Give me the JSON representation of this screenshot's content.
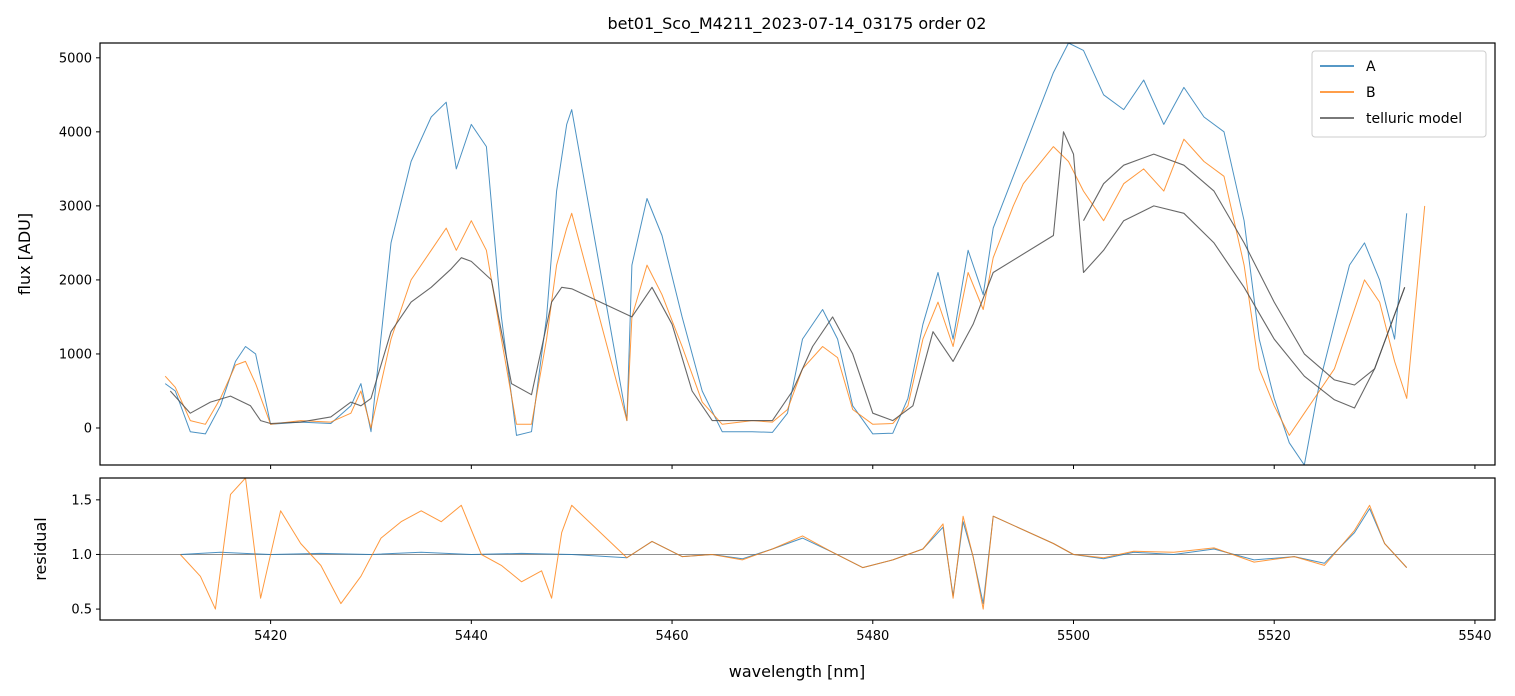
{
  "chart_data": [
    {
      "type": "line",
      "title": "bet01_Sco_M4211_2023-07-14_03175  order 02",
      "xlabel": "",
      "ylabel": "flux [ADU]",
      "xlim": [
        5403,
        5542
      ],
      "ylim": [
        -500,
        5200
      ],
      "yticks": [
        0,
        1000,
        2000,
        3000,
        4000,
        5000
      ],
      "ytick_labels": [
        "0",
        "1000",
        "2000",
        "3000",
        "4000",
        "5000"
      ],
      "xticks": [
        5420,
        5440,
        5460,
        5480,
        5500,
        5520,
        5540
      ],
      "legend": {
        "placement": "top-right",
        "entries": [
          {
            "label": "A",
            "color": "#1f77b4"
          },
          {
            "label": "B",
            "color": "#ff7f0e"
          },
          {
            "label": "telluric model",
            "color": "#4d4d4d"
          }
        ]
      },
      "series": [
        {
          "name": "A",
          "color": "#1f77b4",
          "x": [
            5409.5,
            5410.5,
            5412,
            5413.5,
            5415,
            5416.5,
            5417.5,
            5418.5,
            5420,
            5423,
            5426,
            5428,
            5429,
            5430,
            5432,
            5434,
            5436,
            5437.5,
            5438.5,
            5440,
            5441.5,
            5443,
            5444.5,
            5446,
            5447.5,
            5448.5,
            5449.5,
            5450,
            5455.5,
            5456,
            5457.5,
            5459,
            5461,
            5463,
            5465,
            5468,
            5470,
            5471.5,
            5473,
            5475,
            5476.5,
            5478,
            5480,
            5482,
            5483.5,
            5485,
            5486.5,
            5488,
            5489.5,
            5491,
            5492,
            5498,
            5499.5,
            5501,
            5503,
            5505,
            5507,
            5509,
            5511,
            5513,
            5515,
            5517,
            5518.5,
            5520,
            5521.5,
            5523,
            5524.5,
            5526,
            5527.5,
            5529,
            5530.5,
            5532,
            5533.2
          ],
          "y": [
            600,
            500,
            -50,
            -80,
            300,
            900,
            1100,
            1000,
            50,
            80,
            60,
            300,
            600,
            -50,
            2500,
            3600,
            4200,
            4400,
            3500,
            4100,
            3800,
            1500,
            -100,
            -50,
            1500,
            3200,
            4100,
            4300,
            100,
            2200,
            3100,
            2600,
            1500,
            500,
            -50,
            -50,
            -60,
            200,
            1200,
            1600,
            1200,
            300,
            -80,
            -70,
            400,
            1400,
            2100,
            1200,
            2400,
            1800,
            2700,
            4800,
            5200,
            5100,
            4500,
            4300,
            4700,
            4100,
            4600,
            4200,
            4000,
            2800,
            1200,
            400,
            -200,
            -500,
            600,
            1400,
            2200,
            2500,
            2000,
            1200,
            2900
          ]
        },
        {
          "name": "B",
          "color": "#ff7f0e",
          "x": [
            5409.5,
            5410.5,
            5412,
            5413.5,
            5415,
            5416.5,
            5417.5,
            5418.5,
            5420,
            5423,
            5426,
            5428,
            5429,
            5430,
            5432,
            5434,
            5436,
            5437.5,
            5438.5,
            5440,
            5441.5,
            5443,
            5444.5,
            5446,
            5447.5,
            5448.5,
            5449.5,
            5450,
            5455.5,
            5456,
            5457.5,
            5459,
            5461,
            5463,
            5465,
            5468,
            5470,
            5471.5,
            5473,
            5475,
            5476.5,
            5478,
            5480,
            5482,
            5483.5,
            5485,
            5486.5,
            5488,
            5489.5,
            5491,
            5492,
            5494,
            5495,
            5498,
            5499.5,
            5501,
            5503,
            5505,
            5507,
            5509,
            5511,
            5513,
            5515,
            5517,
            5518.5,
            5520,
            5521.5,
            5523,
            5524.5,
            5526,
            5527.5,
            5529,
            5530.5,
            5532,
            5533.2,
            5535
          ],
          "y": [
            700,
            550,
            100,
            50,
            400,
            850,
            900,
            600,
            50,
            100,
            80,
            200,
            500,
            0,
            1200,
            2000,
            2400,
            2700,
            2400,
            2800,
            2400,
            1200,
            50,
            50,
            1200,
            2200,
            2700,
            2900,
            100,
            1500,
            2200,
            1800,
            1100,
            350,
            50,
            100,
            80,
            250,
            800,
            1100,
            950,
            250,
            50,
            60,
            300,
            1200,
            1700,
            1100,
            2100,
            1600,
            2300,
            3000,
            3300,
            3800,
            3600,
            3200,
            2800,
            3300,
            3500,
            3200,
            3900,
            3600,
            3400,
            2200,
            800,
            300,
            -100,
            200,
            500,
            800,
            1400,
            2000,
            1700,
            900,
            400,
            3000
          ]
        },
        {
          "name": "telluric model",
          "color": "#4d4d4d",
          "x": [
            5410,
            5412,
            5414,
            5416,
            5418,
            5419,
            5420,
            5423,
            5426,
            5428,
            5429,
            5430,
            5432,
            5434,
            5436,
            5438,
            5439,
            5440,
            5442,
            5444,
            5446,
            5448,
            5449,
            5450,
            5456,
            5458,
            5460,
            5462,
            5464,
            5466,
            5470,
            5472,
            5474,
            5476,
            5478,
            5480,
            5482,
            5484,
            5486,
            5488,
            5490,
            5492,
            5498,
            5499,
            5500,
            5501,
            5503,
            5505,
            5508,
            5511,
            5514,
            5517,
            5520,
            5523,
            5526,
            5528,
            5530,
            5533
          ],
          "y": [
            500,
            200,
            350,
            430,
            300,
            100,
            60,
            80,
            150,
            350,
            300,
            400,
            1300,
            1700,
            1900,
            2150,
            2300,
            2250,
            2000,
            600,
            450,
            1700,
            1900,
            1880,
            1500,
            1900,
            1400,
            500,
            100,
            100,
            100,
            500,
            1100,
            1500,
            1000,
            200,
            100,
            300,
            1300,
            900,
            1400,
            2100,
            2600,
            4000,
            3700,
            2100,
            2400,
            2800,
            3000,
            2900,
            2500,
            1900,
            1200,
            700,
            380,
            270,
            800,
            1900
          ]
        },
        {
          "name": "telluric model (upper)",
          "color": "#4d4d4d",
          "x": [
            5501,
            5503,
            5505,
            5508,
            5511,
            5514,
            5517,
            5520,
            5523,
            5526,
            5528,
            5530,
            5533
          ],
          "y": [
            2800,
            3300,
            3550,
            3700,
            3550,
            3200,
            2500,
            1700,
            1000,
            650,
            580,
            800,
            1900
          ]
        }
      ]
    },
    {
      "type": "line",
      "title": "",
      "xlabel": "wavelength [nm]",
      "ylabel": "residual",
      "xlim": [
        5403,
        5542
      ],
      "ylim": [
        0.4,
        1.7
      ],
      "yticks": [
        0.5,
        1.0,
        1.5
      ],
      "ytick_labels": [
        "0.5",
        "1.0",
        "1.5"
      ],
      "xticks": [
        5420,
        5440,
        5460,
        5480,
        5500,
        5520,
        5540
      ],
      "xtick_labels": [
        "5420",
        "5440",
        "5460",
        "5480",
        "5500",
        "5520",
        "5540"
      ],
      "reference_line": 1.0,
      "series": [
        {
          "name": "A",
          "color": "#1f77b4",
          "x": [
            5411,
            5415,
            5420,
            5425,
            5430,
            5435,
            5440,
            5445,
            5450,
            5455.5,
            5458,
            5461,
            5464,
            5467,
            5470,
            5473,
            5476,
            5479,
            5482,
            5485,
            5487,
            5488,
            5489,
            5490,
            5491,
            5492,
            5498,
            5500,
            5503,
            5506,
            5510,
            5514,
            5518,
            5522,
            5525,
            5528,
            5529.5,
            5531,
            5533.2
          ],
          "y": [
            1.0,
            1.02,
            1.0,
            1.01,
            1.0,
            1.02,
            1.0,
            1.01,
            1.0,
            0.97,
            1.12,
            0.98,
            1.0,
            0.96,
            1.05,
            1.15,
            1.02,
            0.88,
            0.95,
            1.05,
            1.25,
            0.62,
            1.3,
            0.98,
            0.55,
            1.35,
            1.1,
            1.0,
            0.96,
            1.02,
            1.0,
            1.05,
            0.95,
            0.98,
            0.92,
            1.2,
            1.42,
            1.1,
            0.88
          ]
        },
        {
          "name": "B",
          "color": "#ff7f0e",
          "x": [
            5411,
            5413,
            5414.5,
            5416,
            5417.5,
            5419,
            5421,
            5423,
            5425,
            5427,
            5429,
            5431,
            5433,
            5435,
            5437,
            5439,
            5441,
            5443,
            5445,
            5447,
            5448,
            5449,
            5450,
            5455.5,
            5458,
            5461,
            5464,
            5467,
            5470,
            5473,
            5476,
            5479,
            5482,
            5485,
            5487,
            5488,
            5489,
            5490,
            5491,
            5492,
            5498,
            5500,
            5503,
            5506,
            5510,
            5514,
            5518,
            5522,
            5525,
            5528,
            5529.5,
            5531,
            5533.2
          ],
          "y": [
            1.0,
            0.8,
            0.5,
            1.55,
            1.7,
            0.6,
            1.4,
            1.1,
            0.9,
            0.55,
            0.8,
            1.15,
            1.3,
            1.4,
            1.3,
            1.45,
            1.0,
            0.9,
            0.75,
            0.85,
            0.6,
            1.2,
            1.45,
            0.97,
            1.12,
            0.98,
            1.0,
            0.95,
            1.05,
            1.17,
            1.02,
            0.88,
            0.95,
            1.05,
            1.28,
            0.6,
            1.35,
            0.98,
            0.5,
            1.35,
            1.1,
            1.0,
            0.97,
            1.03,
            1.02,
            1.06,
            0.93,
            0.98,
            0.9,
            1.22,
            1.45,
            1.1,
            0.88
          ]
        }
      ]
    }
  ]
}
